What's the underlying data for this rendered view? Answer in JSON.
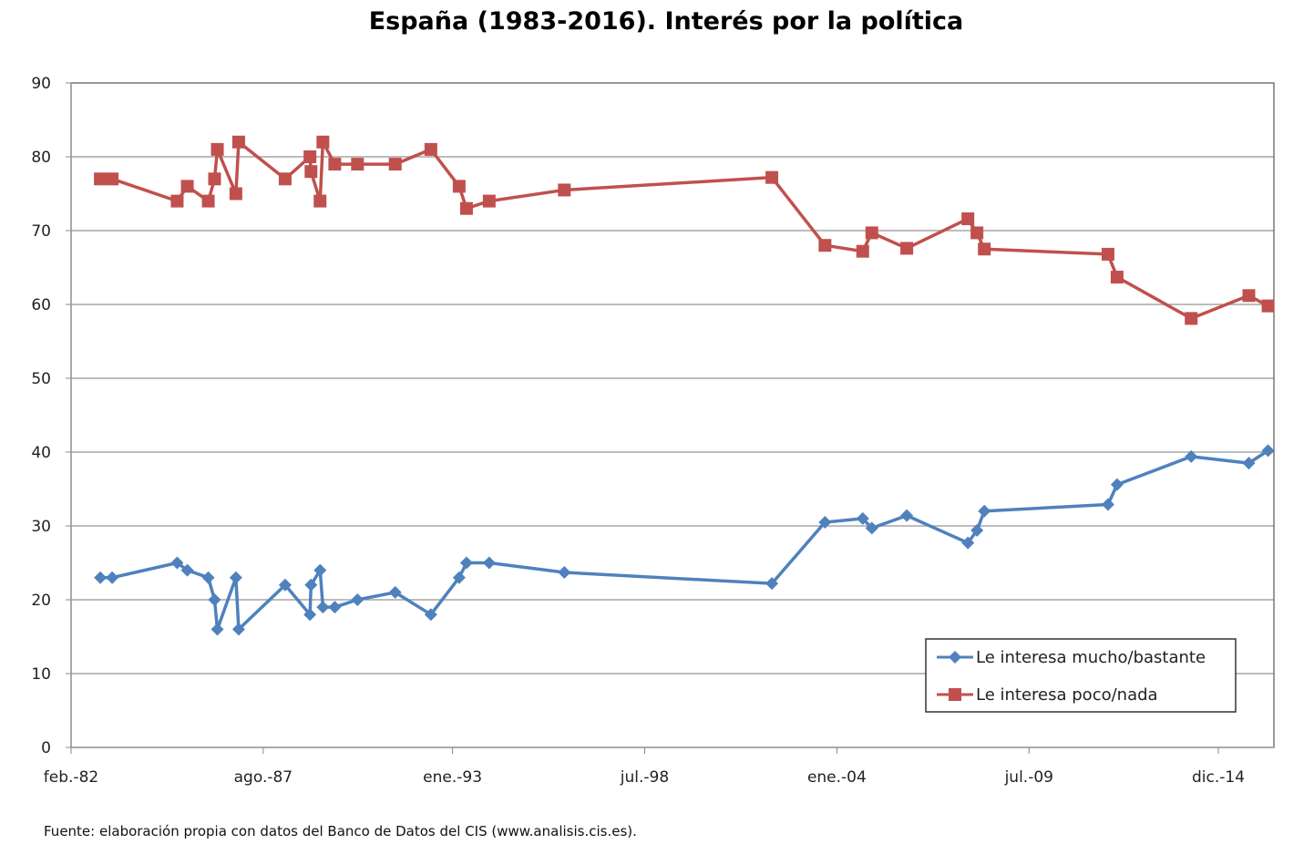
{
  "chart_data": {
    "type": "line",
    "title": "España (1983-2016).  Interés por la política",
    "xlabel": "",
    "ylabel": "",
    "ylim": [
      0,
      90
    ],
    "yticks": [
      0,
      10,
      20,
      30,
      40,
      50,
      60,
      70,
      80,
      90
    ],
    "xlim_years": [
      1982.083,
      2016.66
    ],
    "xticks": [
      {
        "label": "feb.-82",
        "year": 1982.083
      },
      {
        "label": "ago.-87",
        "year": 1987.583
      },
      {
        "label": "ene.-93",
        "year": 1993.0
      },
      {
        "label": "jul.-98",
        "year": 1998.5
      },
      {
        "label": "ene.-04",
        "year": 2004.0
      },
      {
        "label": "jul.-09",
        "year": 2009.5
      },
      {
        "label": "dic.-14",
        "year": 2014.917
      }
    ],
    "grid": true,
    "legend_position": "bottom-right",
    "x": [
      1982.92,
      1983.26,
      1985.12,
      1985.41,
      1986.01,
      1986.19,
      1986.27,
      1986.8,
      1986.88,
      1988.21,
      1988.92,
      1988.95,
      1989.21,
      1989.29,
      1989.63,
      1990.28,
      1991.36,
      1992.38,
      1993.19,
      1993.4,
      1994.05,
      1996.2,
      2002.14,
      2003.66,
      2004.74,
      2005.0,
      2006.0,
      2007.75,
      2008.01,
      2008.22,
      2011.76,
      2012.02,
      2014.14,
      2015.79,
      2016.34
    ],
    "series": [
      {
        "name": "Le interesa mucho/bastante",
        "color": "#4f81bd",
        "marker": "diamond",
        "values": [
          23,
          23,
          25,
          24,
          23,
          20,
          16,
          23,
          16,
          22,
          18,
          22,
          24,
          19,
          19,
          20,
          21,
          18,
          23,
          25,
          25,
          23.7,
          22.2,
          30.5,
          31,
          29.7,
          31.4,
          27.7,
          29.4,
          32,
          32.9,
          35.6,
          39.4,
          38.5,
          40.2
        ]
      },
      {
        "name": "Le interesa poco/nada",
        "color": "#c0504d",
        "marker": "square",
        "values": [
          77,
          77,
          74,
          76,
          74,
          77,
          81,
          75,
          82,
          77,
          80,
          78,
          74,
          82,
          79,
          79,
          79,
          81,
          76,
          73,
          74,
          75.5,
          77.2,
          68,
          67.2,
          69.7,
          67.6,
          71.6,
          69.7,
          67.5,
          66.8,
          63.7,
          58.1,
          61.2,
          59.8
        ]
      }
    ]
  },
  "source_note": "Fuente: elaboración propia con datos del Banco de Datos del CIS (www.analisis.cis.es)."
}
